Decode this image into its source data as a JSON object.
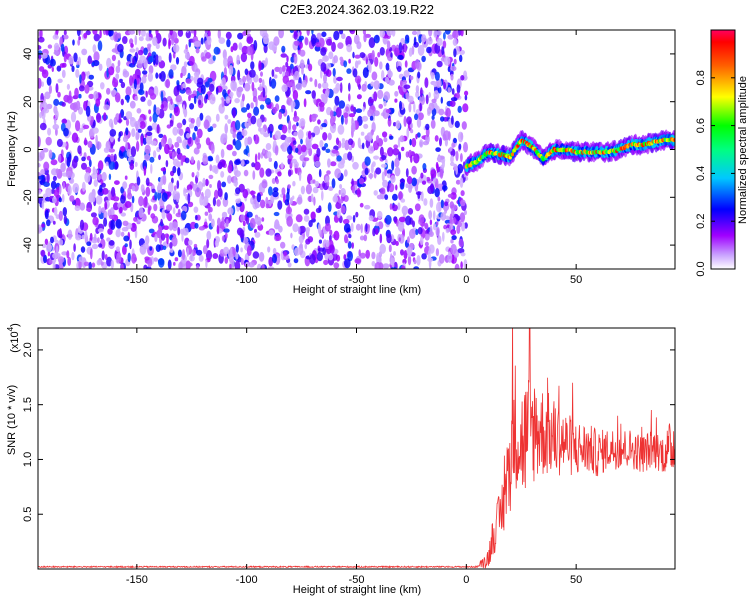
{
  "title": "C2E3.2024.362.03.19.R22",
  "chart_data": [
    {
      "type": "heatmap",
      "xlabel": "Height of straight line (km)",
      "ylabel": "Frequency (Hz)",
      "xlim": [
        -195,
        95
      ],
      "ylim": [
        -50,
        50
      ],
      "xticks": [
        -150,
        -100,
        -50,
        0,
        50
      ],
      "yticks": [
        -40,
        -20,
        0,
        20,
        40
      ],
      "colorbar": {
        "label": "Normalized spectral amplitude",
        "range": [
          0,
          1
        ],
        "ticks": [
          0.0,
          0.2,
          0.4,
          0.6,
          0.8
        ],
        "tick_labels": [
          "0.0",
          "0.2",
          "0.4",
          "0.6",
          "0.8"
        ],
        "colormap": "rainbow",
        "colors": [
          "#ffffff",
          "#a000ff",
          "#0000ff",
          "#00ffff",
          "#00ff00",
          "#ffff00",
          "#ff0000",
          "#ff0060"
        ]
      },
      "regions": [
        {
          "x_range": [
            -195,
            0
          ],
          "description": "broadband noise",
          "amplitude_range": [
            0.05,
            0.3
          ]
        },
        {
          "x_range": [
            0,
            95
          ],
          "description": "narrow band signal",
          "amplitude_range": [
            0.2,
            0.95
          ]
        }
      ],
      "signal_track": {
        "x": [
          0,
          5,
          10,
          15,
          20,
          25,
          30,
          35,
          40,
          45,
          50,
          55,
          60,
          65,
          70,
          75,
          80,
          85,
          90,
          95
        ],
        "freq": [
          -7,
          -5,
          -1,
          -2,
          -3,
          4,
          1,
          -4,
          0,
          0,
          -1,
          -1,
          -1,
          -1,
          0,
          2,
          2,
          3,
          4,
          4
        ]
      }
    },
    {
      "type": "line",
      "xlabel": "Height of straight line (km)",
      "ylabel": "SNR (10 * v/v)",
      "y_scale_label": "(x10^4)",
      "y_multiplier": 10000,
      "xlim": [
        -195,
        95
      ],
      "ylim": [
        0,
        2.2
      ],
      "xticks": [
        -150,
        -100,
        -50,
        0,
        50
      ],
      "yticks": [
        0.5,
        1.0,
        1.5,
        2.0
      ],
      "ytick_labels": [
        "0.5",
        "1.0",
        "1.5",
        "2.0"
      ],
      "color": "#ee3333",
      "series": [
        {
          "x": [
            -195,
            -150,
            -100,
            -50,
            0,
            5,
            10,
            12,
            15,
            18,
            20,
            22,
            25,
            28,
            30,
            35,
            40,
            45,
            50,
            55,
            60,
            65,
            70,
            75,
            80,
            85,
            90,
            95
          ],
          "values": [
            0.02,
            0.02,
            0.02,
            0.02,
            0.02,
            0.02,
            0.1,
            0.3,
            0.45,
            0.7,
            1.0,
            1.35,
            1.15,
            1.2,
            1.3,
            1.25,
            1.2,
            1.15,
            1.1,
            1.1,
            1.05,
            1.1,
            1.1,
            1.1,
            1.05,
            1.1,
            1.05,
            1.15
          ],
          "noise": [
            0.005,
            0.005,
            0.005,
            0.005,
            0.005,
            0.005,
            0.08,
            0.15,
            0.2,
            0.3,
            0.4,
            0.5,
            0.45,
            0.5,
            0.45,
            0.35,
            0.3,
            0.25,
            0.22,
            0.2,
            0.18,
            0.16,
            0.16,
            0.15,
            0.15,
            0.15,
            0.15,
            0.25
          ]
        }
      ]
    }
  ]
}
